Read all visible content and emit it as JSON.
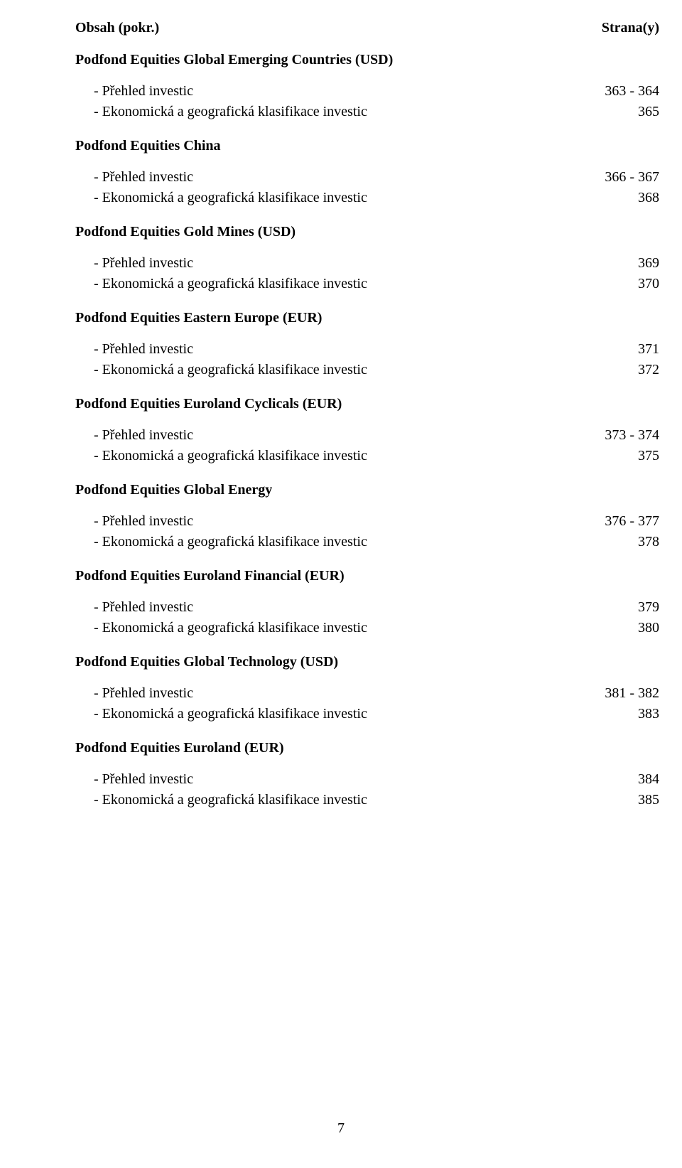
{
  "header": {
    "left": "Obsah (pokr.)",
    "right": "Strana(y)"
  },
  "sections": [
    {
      "title": "Podfond Equities Global Emerging Countries (USD)",
      "items": [
        {
          "label": "- Přehled investic",
          "page": "363 - 364"
        },
        {
          "label": "- Ekonomická a geografická klasifikace investic",
          "page": "365"
        }
      ]
    },
    {
      "title": "Podfond Equities China",
      "items": [
        {
          "label": "- Přehled investic",
          "page": "366 - 367"
        },
        {
          "label": "- Ekonomická a geografická klasifikace investic",
          "page": "368"
        }
      ]
    },
    {
      "title": "Podfond Equities Gold Mines (USD)",
      "items": [
        {
          "label": "- Přehled investic",
          "page": "369"
        },
        {
          "label": "- Ekonomická a geografická klasifikace investic",
          "page": "370"
        }
      ]
    },
    {
      "title": "Podfond Equities Eastern Europe (EUR)",
      "items": [
        {
          "label": "- Přehled investic",
          "page": "371"
        },
        {
          "label": "- Ekonomická a geografická klasifikace investic",
          "page": "372"
        }
      ]
    },
    {
      "title": "Podfond Equities Euroland Cyclicals (EUR)",
      "items": [
        {
          "label": "- Přehled investic",
          "page": "373 - 374"
        },
        {
          "label": "- Ekonomická a geografická klasifikace investic",
          "page": "375"
        }
      ]
    },
    {
      "title": "Podfond Equities Global Energy",
      "items": [
        {
          "label": "- Přehled investic",
          "page": "376 - 377"
        },
        {
          "label": "- Ekonomická a geografická klasifikace investic",
          "page": "378"
        }
      ]
    },
    {
      "title": "Podfond Equities Euroland Financial (EUR)",
      "items": [
        {
          "label": "- Přehled investic",
          "page": "379"
        },
        {
          "label": "- Ekonomická a geografická klasifikace investic",
          "page": "380"
        }
      ]
    },
    {
      "title": "Podfond Equities Global Technology (USD)",
      "items": [
        {
          "label": "- Přehled investic",
          "page": "381 - 382"
        },
        {
          "label": "- Ekonomická a geografická klasifikace investic",
          "page": "383"
        }
      ]
    },
    {
      "title": "Podfond Equities Euroland (EUR)",
      "items": [
        {
          "label": "- Přehled investic",
          "page": "384"
        },
        {
          "label": "- Ekonomická a geografická klasifikace investic",
          "page": "385"
        }
      ]
    }
  ],
  "page_number": "7"
}
